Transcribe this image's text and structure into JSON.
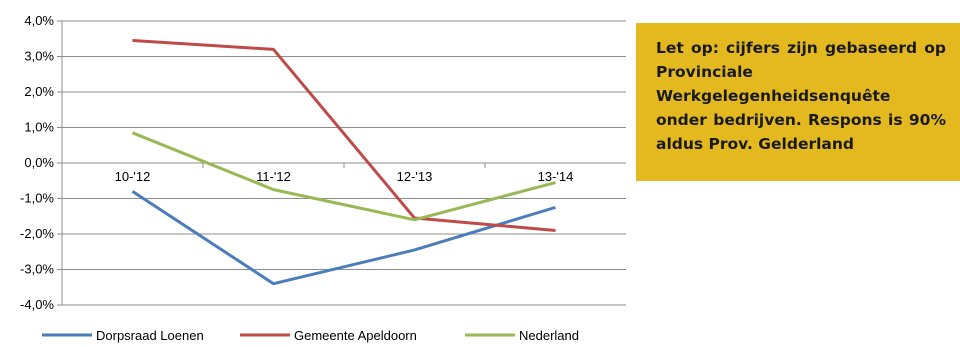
{
  "note": {
    "text": "Let op: cijfers zijn gebaseerd op Provinciale Werkgelegenheidsenquête onder bedrijven. Respons is 90% aldus Prov. Gelderland",
    "background": "#e3b91f"
  },
  "chart_data": {
    "type": "line",
    "categories": [
      "10-'12",
      "11-'12",
      "12-'13",
      "13-'14"
    ],
    "ylim": [
      -4.0,
      4.0
    ],
    "yticks": [
      "4,0%",
      "3,0%",
      "2,0%",
      "1,0%",
      "0,0%",
      "-1,0%",
      "-2,0%",
      "-3,0%",
      "-4,0%"
    ],
    "grid": true,
    "legend_position": "bottom",
    "series": [
      {
        "name": "Dorpsraad Loenen",
        "color": "#4a7ebb",
        "values": [
          -0.8,
          -3.4,
          -2.45,
          -1.25
        ]
      },
      {
        "name": "Gemeente Apeldoorn",
        "color": "#be4b48",
        "values": [
          3.45,
          3.2,
          -1.55,
          -1.9
        ]
      },
      {
        "name": "Nederland",
        "color": "#98b954",
        "values": [
          0.85,
          -0.75,
          -1.6,
          -0.55
        ]
      }
    ]
  }
}
